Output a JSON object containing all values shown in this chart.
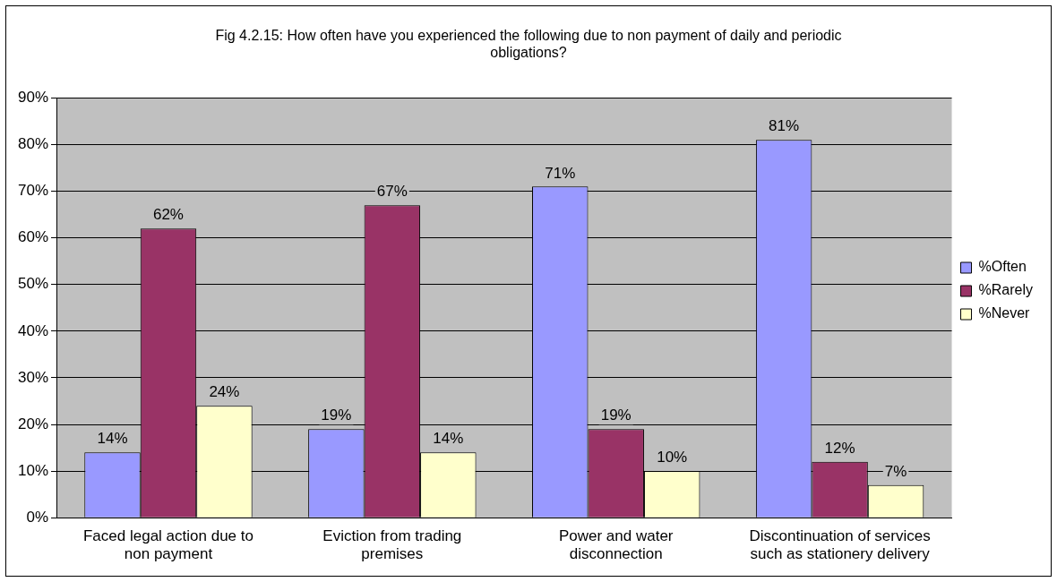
{
  "chart_data": {
    "type": "bar",
    "title": "Fig 4.2.15: How often have you experienced the following due to non payment of daily and periodic obligations?",
    "categories": [
      "Faced legal action due to non payment",
      "Eviction from trading premises",
      "Power and water disconnection",
      "Discontinuation of services such as stationery delivery"
    ],
    "series": [
      {
        "name": "%Often",
        "color": "#9999ff",
        "values": [
          14,
          19,
          71,
          81
        ],
        "value_labels": [
          "14%",
          "19%",
          "71%",
          "81%"
        ]
      },
      {
        "name": "%Rarely",
        "color": "#993366",
        "values": [
          62,
          67,
          19,
          12
        ],
        "value_labels": [
          "62%",
          "67%",
          "19%",
          "12%"
        ]
      },
      {
        "name": "%Never",
        "color": "#ffffcc",
        "values": [
          24,
          14,
          10,
          7
        ],
        "value_labels": [
          "24%",
          "14%",
          "10%",
          "7%"
        ]
      }
    ],
    "ylim": [
      0,
      90
    ],
    "yticks": [
      {
        "value": 0,
        "label": "0%"
      },
      {
        "value": 10,
        "label": "10%"
      },
      {
        "value": 20,
        "label": "20%"
      },
      {
        "value": 30,
        "label": "30%"
      },
      {
        "value": 40,
        "label": "40%"
      },
      {
        "value": 50,
        "label": "50%"
      },
      {
        "value": 60,
        "label": "60%"
      },
      {
        "value": 70,
        "label": "70%"
      },
      {
        "value": 80,
        "label": "80%"
      },
      {
        "value": 90,
        "label": "90%"
      }
    ],
    "grid": "y",
    "legend": "right"
  }
}
